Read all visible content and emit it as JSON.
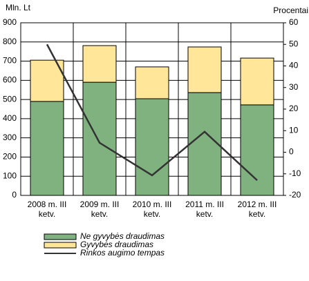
{
  "chart_data": {
    "type": "bar_line",
    "y_label": "Mln. Lt",
    "y2_label": "Procentai",
    "categories": [
      "2008 m. III ketv.",
      "2009 m. III ketv.",
      "2010 m. III ketv.",
      "2011 m. III ketv.",
      "2012 m. III ketv."
    ],
    "series": [
      {
        "name": "Ne gyvybės draudimas",
        "color": "#7fb27f",
        "values": [
          490,
          590,
          504,
          536,
          472
        ]
      },
      {
        "name": "Gyvybės draudimas",
        "color": "#ffe699",
        "values": [
          215,
          191,
          166,
          238,
          244
        ]
      },
      {
        "name": "Rinkos augimo tempas",
        "color": "#333333",
        "axis": "y2",
        "values": [
          50,
          4.4,
          -10.7,
          9.5,
          -13
        ]
      }
    ],
    "ylim": [
      0,
      900
    ],
    "yticks": [
      0,
      100,
      200,
      300,
      400,
      500,
      600,
      700,
      800,
      900
    ],
    "y2lim": [
      -20,
      60
    ],
    "y2ticks": [
      -20,
      -10,
      0,
      10,
      20,
      30,
      40,
      50,
      60
    ],
    "grid": true
  }
}
